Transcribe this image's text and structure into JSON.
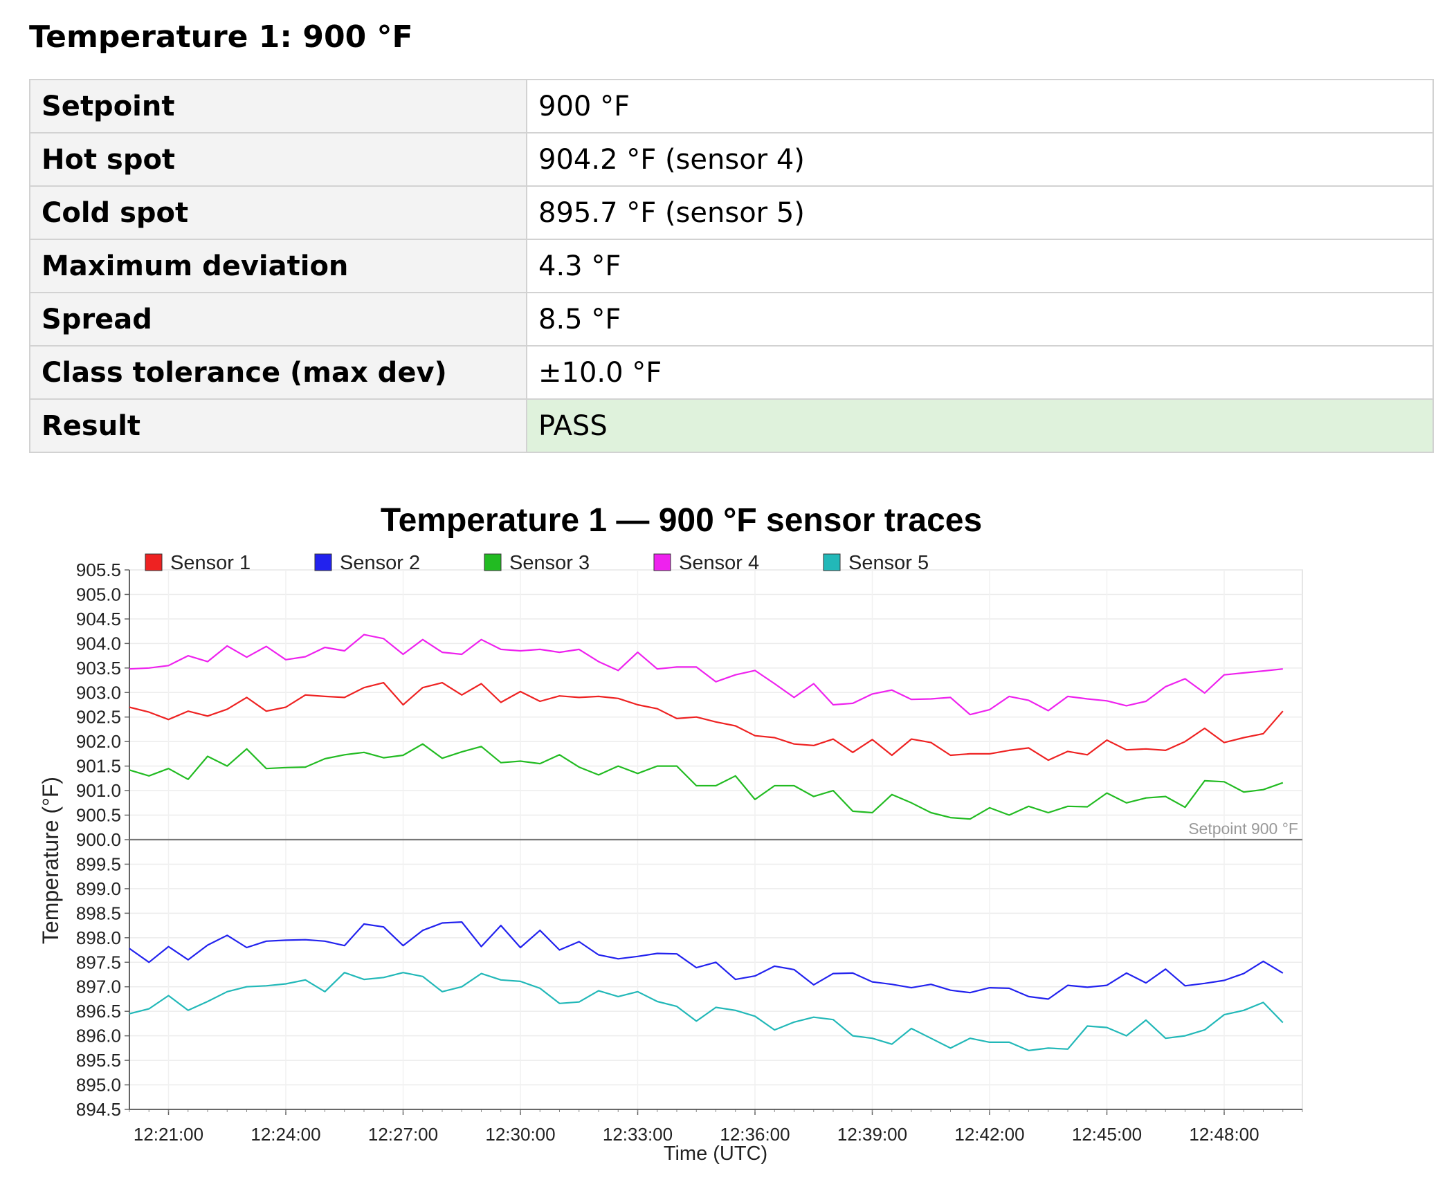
{
  "section": {
    "title": "Temperature 1: 900 °F"
  },
  "summary": {
    "rows": [
      {
        "label": "Setpoint",
        "value": "900 °F"
      },
      {
        "label": "Hot spot",
        "value": "904.2 °F (sensor 4)"
      },
      {
        "label": "Cold spot",
        "value": "895.7 °F (sensor 5)"
      },
      {
        "label": "Maximum deviation",
        "value": "4.3 °F"
      },
      {
        "label": "Spread",
        "value": "8.5 °F"
      },
      {
        "label": "Class tolerance (max dev)",
        "value": "±10.0 °F"
      },
      {
        "label": "Result",
        "value": "PASS"
      }
    ],
    "result_color": "#dff2dc"
  },
  "chart_data": {
    "type": "line",
    "title": "Temperature 1 — 900 °F sensor traces",
    "xlabel": "Time (UTC)",
    "ylabel": "Temperature (°F)",
    "ylim": [
      894.5,
      905.5
    ],
    "y_ticks": [
      894.5,
      895.0,
      895.5,
      896.0,
      896.5,
      897.0,
      897.5,
      898.0,
      898.5,
      899.0,
      899.5,
      900.0,
      900.5,
      901.0,
      901.5,
      902.0,
      902.5,
      903.0,
      903.5,
      904.0,
      904.5,
      905.0,
      905.5
    ],
    "x_ticks": [
      "12:21:00",
      "12:24:00",
      "12:27:00",
      "12:30:00",
      "12:33:00",
      "12:36:00",
      "12:39:00",
      "12:42:00",
      "12:45:00",
      "12:48:00"
    ],
    "x_start": "12:20:00",
    "x_end": "12:50:00",
    "x_interval_seconds": 30,
    "grid": true,
    "legend_position": "top-left",
    "reference_line": {
      "value": 900.0,
      "label": "Setpoint 900 °F"
    },
    "series": [
      {
        "name": "Sensor 1",
        "color": "#ee2222",
        "values": [
          902.7,
          902.6,
          902.45,
          902.62,
          902.52,
          902.66,
          902.9,
          902.62,
          902.7,
          902.95,
          902.92,
          902.9,
          903.1,
          903.2,
          902.75,
          903.1,
          903.2,
          902.95,
          903.18,
          902.8,
          903.02,
          902.82,
          902.93,
          902.9,
          902.92,
          902.88,
          902.75,
          902.67,
          902.47,
          902.5,
          902.4,
          902.32,
          902.12,
          902.08,
          901.95,
          901.92,
          902.05,
          901.78,
          902.04,
          901.72,
          902.05,
          901.98,
          901.72,
          901.75,
          901.75,
          901.82,
          901.87,
          901.62,
          901.8,
          901.73,
          902.03,
          901.83,
          901.85,
          901.82,
          902.0,
          902.27,
          901.98,
          902.08,
          902.16,
          902.62
        ]
      },
      {
        "name": "Sensor 2",
        "color": "#2222ee",
        "values": [
          897.78,
          897.5,
          897.82,
          897.55,
          897.85,
          898.05,
          897.8,
          897.93,
          897.95,
          897.96,
          897.93,
          897.84,
          898.28,
          898.22,
          897.84,
          898.15,
          898.3,
          898.32,
          897.82,
          898.25,
          897.8,
          898.15,
          897.75,
          897.92,
          897.65,
          897.57,
          897.62,
          897.68,
          897.67,
          897.39,
          897.5,
          897.15,
          897.22,
          897.42,
          897.35,
          897.04,
          897.27,
          897.28,
          897.1,
          897.05,
          896.98,
          897.05,
          896.93,
          896.88,
          896.98,
          896.97,
          896.8,
          896.75,
          897.03,
          896.99,
          897.03,
          897.28,
          897.08,
          897.36,
          897.02,
          897.07,
          897.13,
          897.27,
          897.52,
          897.28
        ]
      },
      {
        "name": "Sensor 3",
        "color": "#22bb22",
        "values": [
          901.42,
          901.3,
          901.45,
          901.23,
          901.7,
          901.5,
          901.85,
          901.45,
          901.47,
          901.48,
          901.65,
          901.73,
          901.78,
          901.67,
          901.72,
          901.95,
          901.66,
          901.79,
          901.9,
          901.57,
          901.6,
          901.55,
          901.73,
          901.48,
          901.32,
          901.5,
          901.35,
          901.5,
          901.5,
          901.1,
          901.1,
          901.3,
          900.82,
          901.1,
          901.1,
          900.88,
          901.0,
          900.58,
          900.55,
          900.92,
          900.75,
          900.55,
          900.45,
          900.42,
          900.65,
          900.5,
          900.68,
          900.55,
          900.68,
          900.67,
          900.95,
          900.75,
          900.85,
          900.88,
          900.66,
          901.2,
          901.18,
          900.97,
          901.02,
          901.16
        ]
      },
      {
        "name": "Sensor 4",
        "color": "#ee22ee",
        "values": [
          903.48,
          903.5,
          903.55,
          903.75,
          903.63,
          903.95,
          903.72,
          903.94,
          903.67,
          903.73,
          903.92,
          903.85,
          904.18,
          904.1,
          903.78,
          904.08,
          903.82,
          903.78,
          904.08,
          903.88,
          903.85,
          903.88,
          903.82,
          903.88,
          903.63,
          903.45,
          903.82,
          903.48,
          903.52,
          903.52,
          903.22,
          903.36,
          903.45,
          903.18,
          902.9,
          903.18,
          902.75,
          902.78,
          902.97,
          903.05,
          902.86,
          902.87,
          902.9,
          902.55,
          902.65,
          902.92,
          902.84,
          902.63,
          902.92,
          902.87,
          902.83,
          902.73,
          902.82,
          903.12,
          903.28,
          902.99,
          903.36,
          903.4,
          903.44,
          903.48
        ]
      },
      {
        "name": "Sensor 5",
        "color": "#22b8b8",
        "values": [
          896.45,
          896.55,
          896.82,
          896.52,
          896.7,
          896.9,
          897.0,
          897.02,
          897.06,
          897.14,
          896.9,
          897.29,
          897.15,
          897.19,
          897.29,
          897.21,
          896.9,
          897.0,
          897.27,
          897.14,
          897.11,
          896.97,
          896.66,
          896.69,
          896.92,
          896.8,
          896.9,
          896.7,
          896.6,
          896.3,
          896.58,
          896.52,
          896.4,
          896.12,
          896.28,
          896.38,
          896.33,
          896.0,
          895.95,
          895.83,
          896.15,
          895.95,
          895.75,
          895.95,
          895.87,
          895.87,
          895.7,
          895.75,
          895.73,
          896.2,
          896.17,
          896.0,
          896.32,
          895.95,
          896.0,
          896.12,
          896.43,
          896.52,
          896.68,
          896.27
        ]
      }
    ]
  }
}
